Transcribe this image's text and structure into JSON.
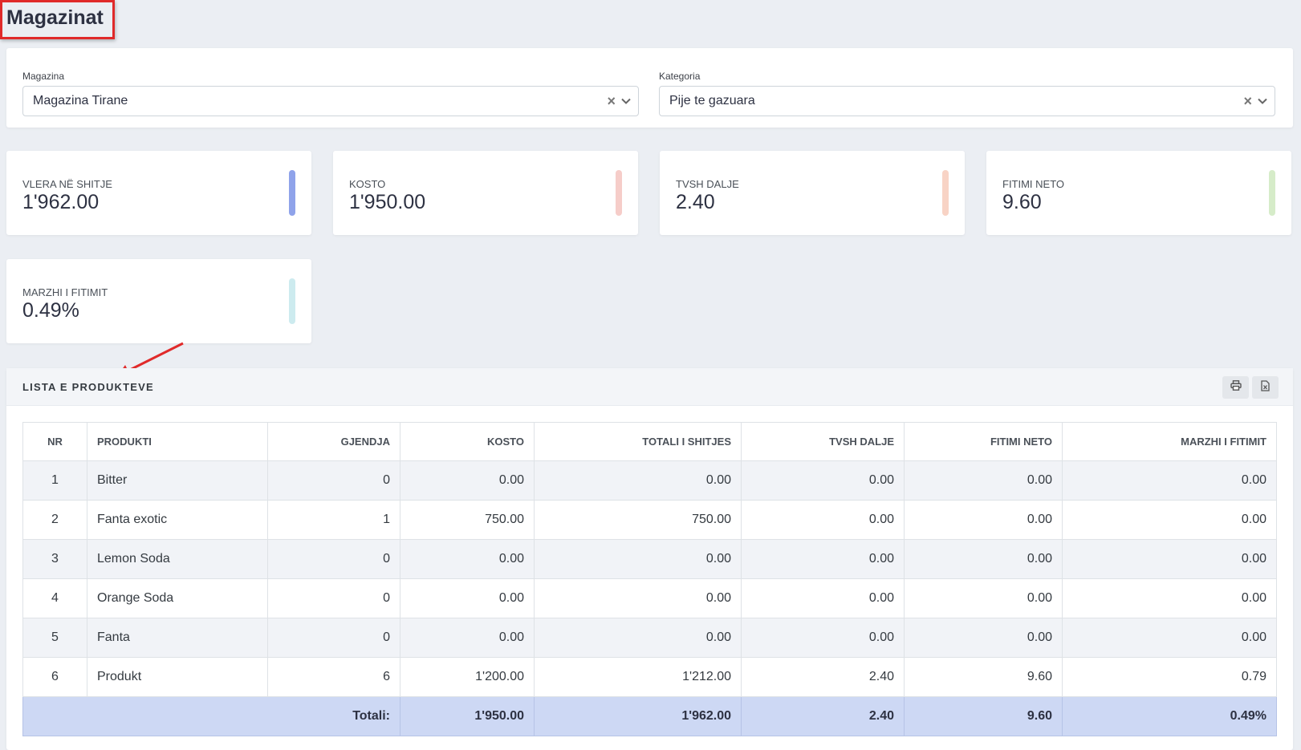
{
  "page": {
    "title": "Magazinat"
  },
  "filters": {
    "warehouse": {
      "label": "Magazina",
      "value": "Magazina Tirane"
    },
    "category": {
      "label": "Kategoria",
      "value": "Pije te gazuara"
    }
  },
  "stats": [
    {
      "label": "VLERA NË SHITJE",
      "value": "1'962.00",
      "color": "#8fa3ea"
    },
    {
      "label": "KOSTO",
      "value": "1'950.00",
      "color": "#f6cdc9"
    },
    {
      "label": "TVSH DALJE",
      "value": "2.40",
      "color": "#f8d3c5"
    },
    {
      "label": "FITIMI NETO",
      "value": "9.60",
      "color": "#d6ecc9"
    },
    {
      "label": "MARZHI I FITIMIT",
      "value": "0.49%",
      "color": "#cdebef"
    }
  ],
  "products": {
    "title": "LISTA E PRODUKTEVE",
    "columns": [
      "NR",
      "PRODUKTI",
      "GJENDJA",
      "KOSTO",
      "TOTALI I SHITJES",
      "TVSH DALJE",
      "FITIMI NETO",
      "MARZHI I FITIMIT"
    ],
    "rows": [
      [
        "1",
        "Bitter",
        "0",
        "0.00",
        "0.00",
        "0.00",
        "0.00",
        "0.00"
      ],
      [
        "2",
        "Fanta exotic",
        "1",
        "750.00",
        "750.00",
        "0.00",
        "0.00",
        "0.00"
      ],
      [
        "3",
        "Lemon Soda",
        "0",
        "0.00",
        "0.00",
        "0.00",
        "0.00",
        "0.00"
      ],
      [
        "4",
        "Orange Soda",
        "0",
        "0.00",
        "0.00",
        "0.00",
        "0.00",
        "0.00"
      ],
      [
        "5",
        "Fanta",
        "0",
        "0.00",
        "0.00",
        "0.00",
        "0.00",
        "0.00"
      ],
      [
        "6",
        "Produkt",
        "6",
        "1'200.00",
        "1'212.00",
        "2.40",
        "9.60",
        "0.79"
      ]
    ],
    "totals": {
      "label": "Totali:",
      "values": [
        "1'950.00",
        "1'962.00",
        "2.40",
        "9.60",
        "0.49%"
      ]
    }
  },
  "icons": {
    "print": "printer-icon",
    "export": "excel-export-icon",
    "clear": "clear-icon",
    "dropdown": "chevron-down-icon"
  },
  "annotation_color": "#e02a2a"
}
